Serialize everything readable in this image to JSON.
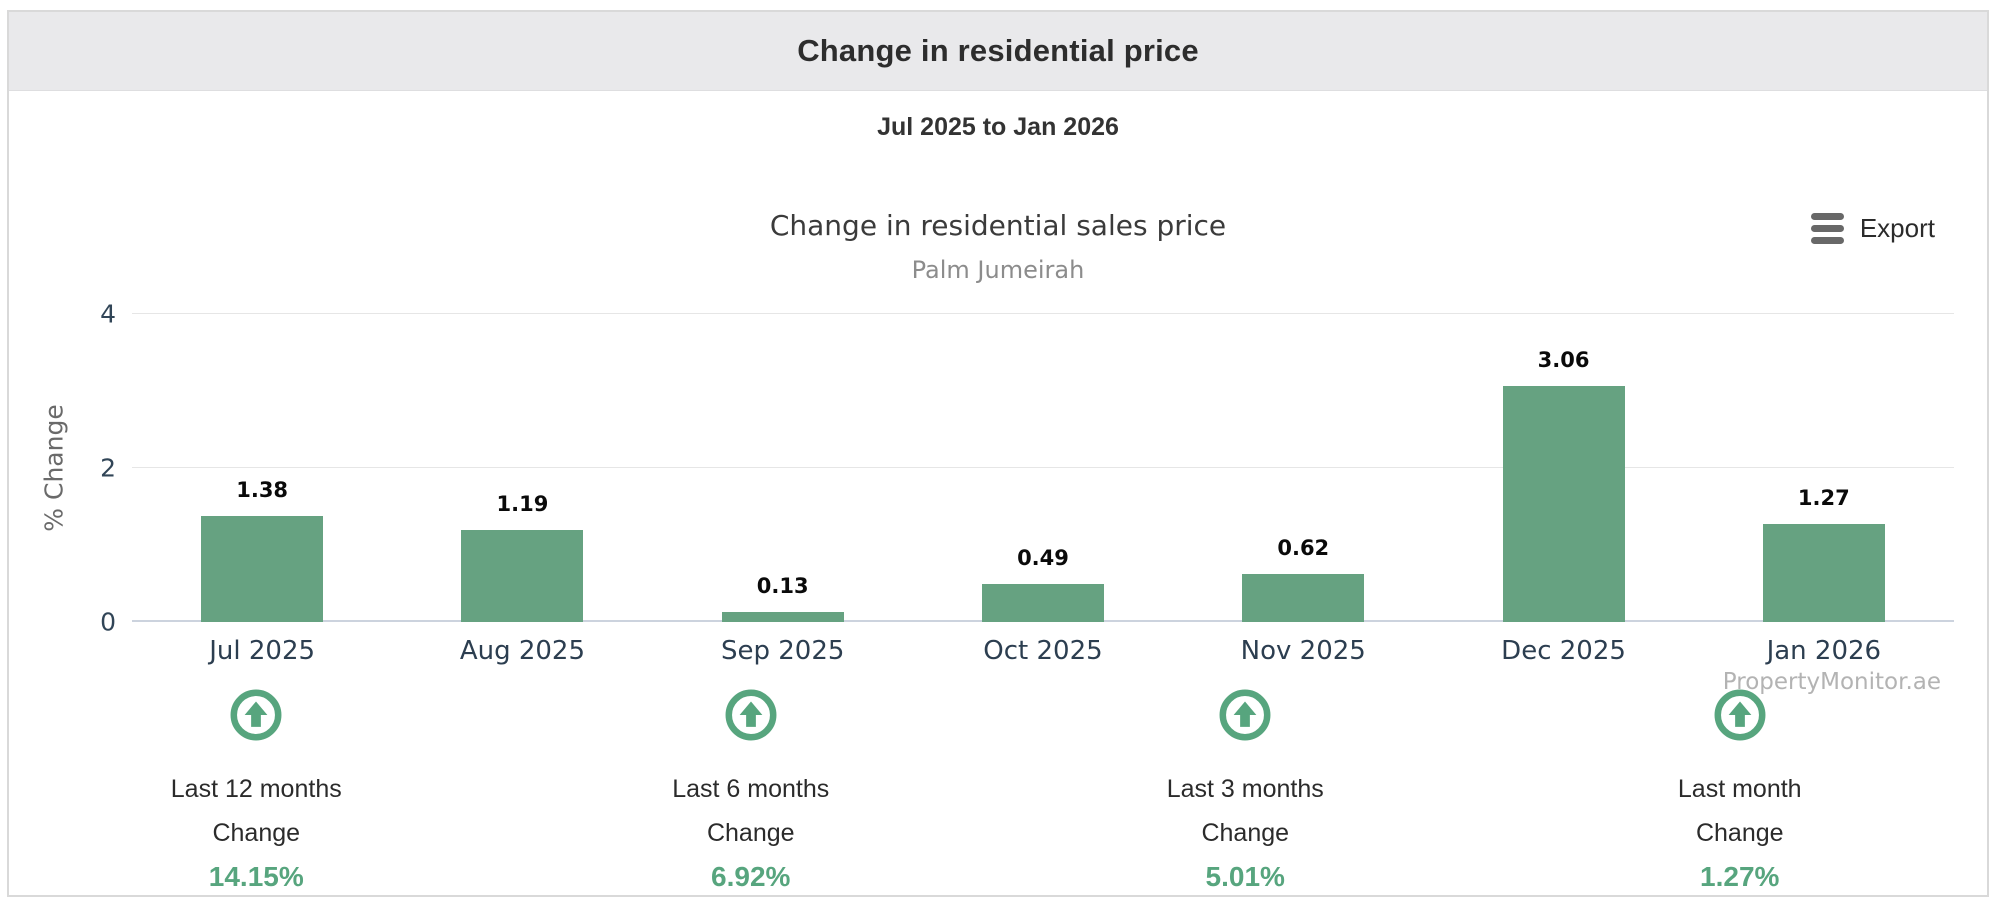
{
  "header": {
    "title": "Change in residential price"
  },
  "range_subtitle": "Jul 2025 to Jan 2026",
  "chart": {
    "title": "Change in residential sales price",
    "subtitle": "Palm Jumeirah",
    "export_label": "Export",
    "watermark": "PropertyMonitor.ae"
  },
  "chart_data": {
    "type": "bar",
    "categories": [
      "Jul 2025",
      "Aug 2025",
      "Sep 2025",
      "Oct 2025",
      "Nov 2025",
      "Dec 2025",
      "Jan 2026"
    ],
    "values": [
      1.38,
      1.19,
      0.13,
      0.49,
      0.62,
      3.06,
      1.27
    ],
    "title": "Change in residential sales price",
    "subtitle": "Palm Jumeirah",
    "xlabel": "",
    "ylabel": "% Change",
    "ylim": [
      0,
      4
    ],
    "yticks": [
      0,
      2,
      4
    ],
    "grid": true,
    "legend": "none",
    "bar_color": "#66a281"
  },
  "stats": [
    {
      "label": "Last 12 months",
      "sublabel": "Change",
      "value": "14.15%"
    },
    {
      "label": "Last 6 months",
      "sublabel": "Change",
      "value": "6.92%"
    },
    {
      "label": "Last 3 months",
      "sublabel": "Change",
      "value": "5.01%"
    },
    {
      "label": "Last month",
      "sublabel": "Change",
      "value": "1.27%"
    }
  ],
  "colors": {
    "bar": "#66a281",
    "stat_green": "#57a57e",
    "header_bg": "#e9e9eb",
    "grid": "#e6e6e6",
    "axis_line": "#ccd3de",
    "tick_text": "#314557"
  }
}
